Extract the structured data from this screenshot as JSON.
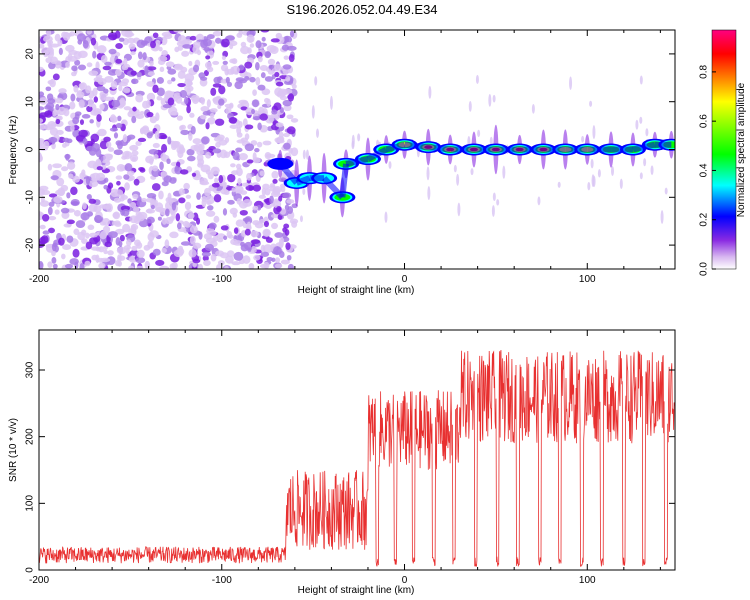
{
  "title": "S196.2026.052.04.49.E34",
  "chart_data": [
    {
      "type": "heatmap",
      "xlabel": "Height of straight line (km)",
      "ylabel": "Frequency (Hz)",
      "xlim": [
        -200,
        148
      ],
      "ylim": [
        -25,
        25
      ],
      "xticks": [
        -200,
        -100,
        0,
        100
      ],
      "yticks": [
        -20,
        -10,
        0,
        10,
        20
      ],
      "colorbar": {
        "label": "Normalized spectral amplitude",
        "range": [
          0,
          0.97
        ],
        "ticks": [
          "0.0",
          "0.2",
          "0.4",
          "0.6",
          "0.8"
        ],
        "tick_values": [
          0,
          0.2,
          0.4,
          0.6,
          0.8
        ]
      },
      "noise_region_x": [
        -200,
        -60
      ],
      "ridge_blobs": [
        {
          "x": -68,
          "y": -3,
          "a": 0.25
        },
        {
          "x": -59,
          "y": -7,
          "a": 0.4
        },
        {
          "x": -52,
          "y": -6,
          "a": 0.35
        },
        {
          "x": -44,
          "y": -6,
          "a": 0.45
        },
        {
          "x": -34,
          "y": -10,
          "a": 0.5
        },
        {
          "x": -32,
          "y": -3,
          "a": 0.5
        },
        {
          "x": -20,
          "y": -2,
          "a": 0.5
        },
        {
          "x": -10,
          "y": 0,
          "a": 0.6
        },
        {
          "x": 0,
          "y": 1,
          "a": 0.85
        },
        {
          "x": 13,
          "y": 0.5,
          "a": 0.9
        },
        {
          "x": 25,
          "y": 0,
          "a": 0.9
        },
        {
          "x": 38,
          "y": 0,
          "a": 0.95
        },
        {
          "x": 50,
          "y": 0,
          "a": 0.95
        },
        {
          "x": 63,
          "y": 0,
          "a": 0.95
        },
        {
          "x": 76,
          "y": 0,
          "a": 0.95
        },
        {
          "x": 88,
          "y": 0,
          "a": 0.7
        },
        {
          "x": 100,
          "y": 0,
          "a": 0.75
        },
        {
          "x": 113,
          "y": 0,
          "a": 0.6
        },
        {
          "x": 125,
          "y": 0,
          "a": 0.55
        },
        {
          "x": 137,
          "y": 1,
          "a": 0.55
        },
        {
          "x": 146,
          "y": 1,
          "a": 0.5
        }
      ]
    },
    {
      "type": "line",
      "xlabel": "Height of straight line (km)",
      "ylabel": "SNR (10 * v/v)",
      "xlim": [
        -200,
        148
      ],
      "ylim": [
        0,
        360
      ],
      "xticks": [
        -200,
        -100,
        0,
        100
      ],
      "yticks": [
        0,
        100,
        200,
        300
      ],
      "color": "#e83030",
      "series": [
        {
          "name": "SNR",
          "segments": [
            {
              "x": [
                -200,
                -65
              ],
              "baseline": 10,
              "amplitude": 25
            },
            {
              "x": [
                -65,
                -20
              ],
              "baseline": 30,
              "amplitude": 120
            },
            {
              "x": [
                -20,
                30
              ],
              "baseline": 150,
              "amplitude": 120
            },
            {
              "x": [
                30,
                148
              ],
              "baseline": 190,
              "amplitude": 140
            }
          ],
          "dips_x": [
            -15,
            -5,
            5,
            16,
            27,
            39,
            51,
            62,
            74,
            85,
            97,
            108,
            120,
            131,
            143
          ],
          "dip_value": 5
        }
      ]
    }
  ]
}
